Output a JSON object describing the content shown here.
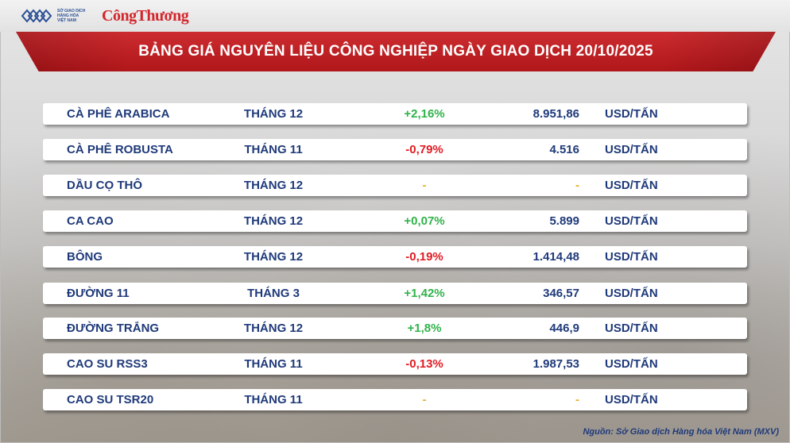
{
  "header": {
    "logo_small_lines": [
      "SỞ GIAO DỊCH",
      "HÀNG HÓA",
      "VIỆT NAM"
    ],
    "brand": "CôngThương"
  },
  "title": "BẢNG GIÁ NGUYÊN LIỆU CÔNG NGHIỆP NGÀY GIAO DỊCH 20/10/2025",
  "colors": {
    "banner": "#c81a1e",
    "text_navy": "#1f3a7a",
    "positive": "#2fb34a",
    "negative": "#e01b23",
    "no_change": "#e7b02a"
  },
  "rows": [
    {
      "name": "CÀ PHÊ ARABICA",
      "month": "THÁNG 12",
      "change": "+2,16%",
      "trend": "pos",
      "price": "8.951,86",
      "unit": "USD/TẤN"
    },
    {
      "name": "CÀ PHÊ ROBUSTA",
      "month": "THÁNG 11",
      "change": "-0,79%",
      "trend": "neg",
      "price": "4.516",
      "unit": "USD/TẤN"
    },
    {
      "name": "DẦU CỌ THÔ",
      "month": "THÁNG 12",
      "change": "-",
      "trend": "none",
      "price": "-",
      "unit": "USD/TẤN"
    },
    {
      "name": "CA CAO",
      "month": "THÁNG 12",
      "change": "+0,07%",
      "trend": "pos",
      "price": "5.899",
      "unit": "USD/TẤN"
    },
    {
      "name": "BÔNG",
      "month": "THÁNG 12",
      "change": "-0,19%",
      "trend": "neg",
      "price": "1.414,48",
      "unit": "USD/TẤN"
    },
    {
      "name": "ĐƯỜNG 11",
      "month": "THÁNG 3",
      "change": "+1,42%",
      "trend": "pos",
      "price": "346,57",
      "unit": "USD/TẤN"
    },
    {
      "name": "ĐƯỜNG TRẮNG",
      "month": "THÁNG 12",
      "change": "+1,8%",
      "trend": "pos",
      "price": "446,9",
      "unit": "USD/TẤN"
    },
    {
      "name": "CAO SU RSS3",
      "month": "THÁNG 11",
      "change": "-0,13%",
      "trend": "neg",
      "price": "1.987,53",
      "unit": "USD/TẤN"
    },
    {
      "name": "CAO SU TSR20",
      "month": "THÁNG 11",
      "change": "-",
      "trend": "none",
      "price": "-",
      "unit": "USD/TẤN"
    }
  ],
  "source": "Nguồn: Sở Giao dịch Hàng hóa Việt Nam (MXV)"
}
